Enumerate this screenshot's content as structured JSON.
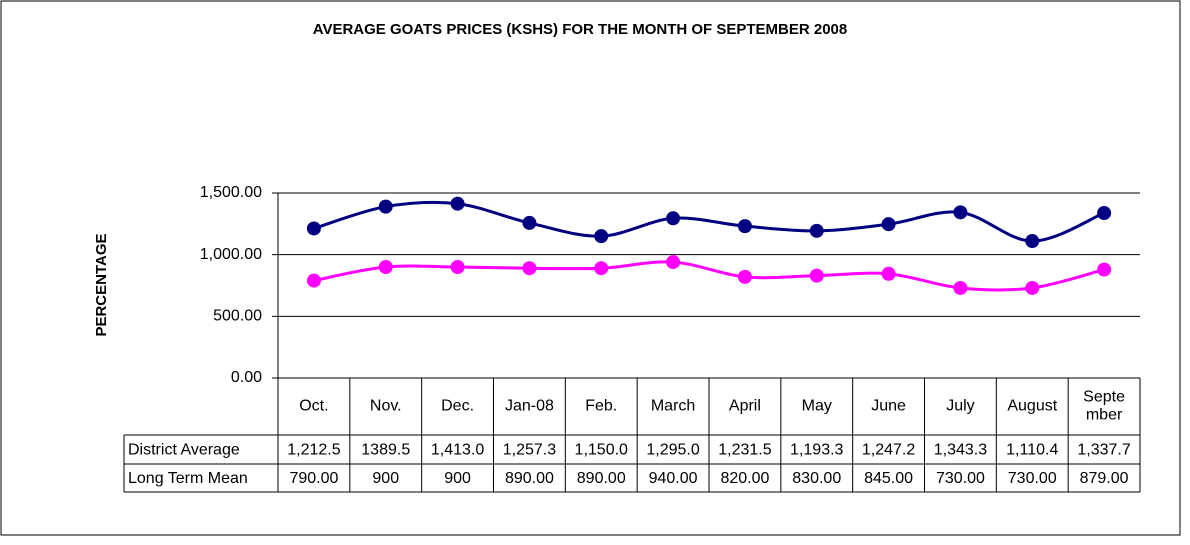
{
  "chart_data": {
    "type": "line",
    "title": "AVERAGE GOATS PRICES (KSHS) FOR THE MONTH OF SEPTEMBER 2008",
    "y_label": "PERCENTAGE",
    "categories": [
      "Oct.",
      "Nov.",
      "Dec.",
      "Jan-08",
      "Feb.",
      "March",
      "April",
      "May",
      "June",
      "July",
      "August",
      "Septe\nmber"
    ],
    "series": [
      {
        "name": "District Average",
        "color": "#000080",
        "values": [
          1212.5,
          1389.5,
          1413.0,
          1257.3,
          1150.0,
          1295.0,
          1231.5,
          1193.3,
          1247.2,
          1343.3,
          1110.4,
          1337.7
        ],
        "value_labels": [
          "1,212.5",
          "1389.5",
          "1,413.0",
          "1,257.3",
          "1,150.0",
          "1,295.0",
          "1,231.5",
          "1,193.3",
          "1,247.2",
          "1,343.3",
          "1,110.4",
          "1,337.7"
        ]
      },
      {
        "name": "Long Term Mean",
        "color": "#ff00ff",
        "values": [
          790,
          900,
          900,
          890,
          890,
          940,
          820,
          830,
          845,
          730,
          730,
          879
        ],
        "value_labels": [
          "790.00",
          "900",
          "900",
          "890.00",
          "890.00",
          "940.00",
          "820.00",
          "830.00",
          "845.00",
          "730.00",
          "730.00",
          "879.00"
        ]
      }
    ],
    "ylim": [
      0,
      1500
    ],
    "yticks": [
      {
        "value": 0,
        "label": "0.00"
      },
      {
        "value": 500,
        "label": "500.00"
      },
      {
        "value": 1000,
        "label": "1,000.00"
      },
      {
        "value": 1500,
        "label": "1,500.00"
      }
    ],
    "grid": true
  }
}
